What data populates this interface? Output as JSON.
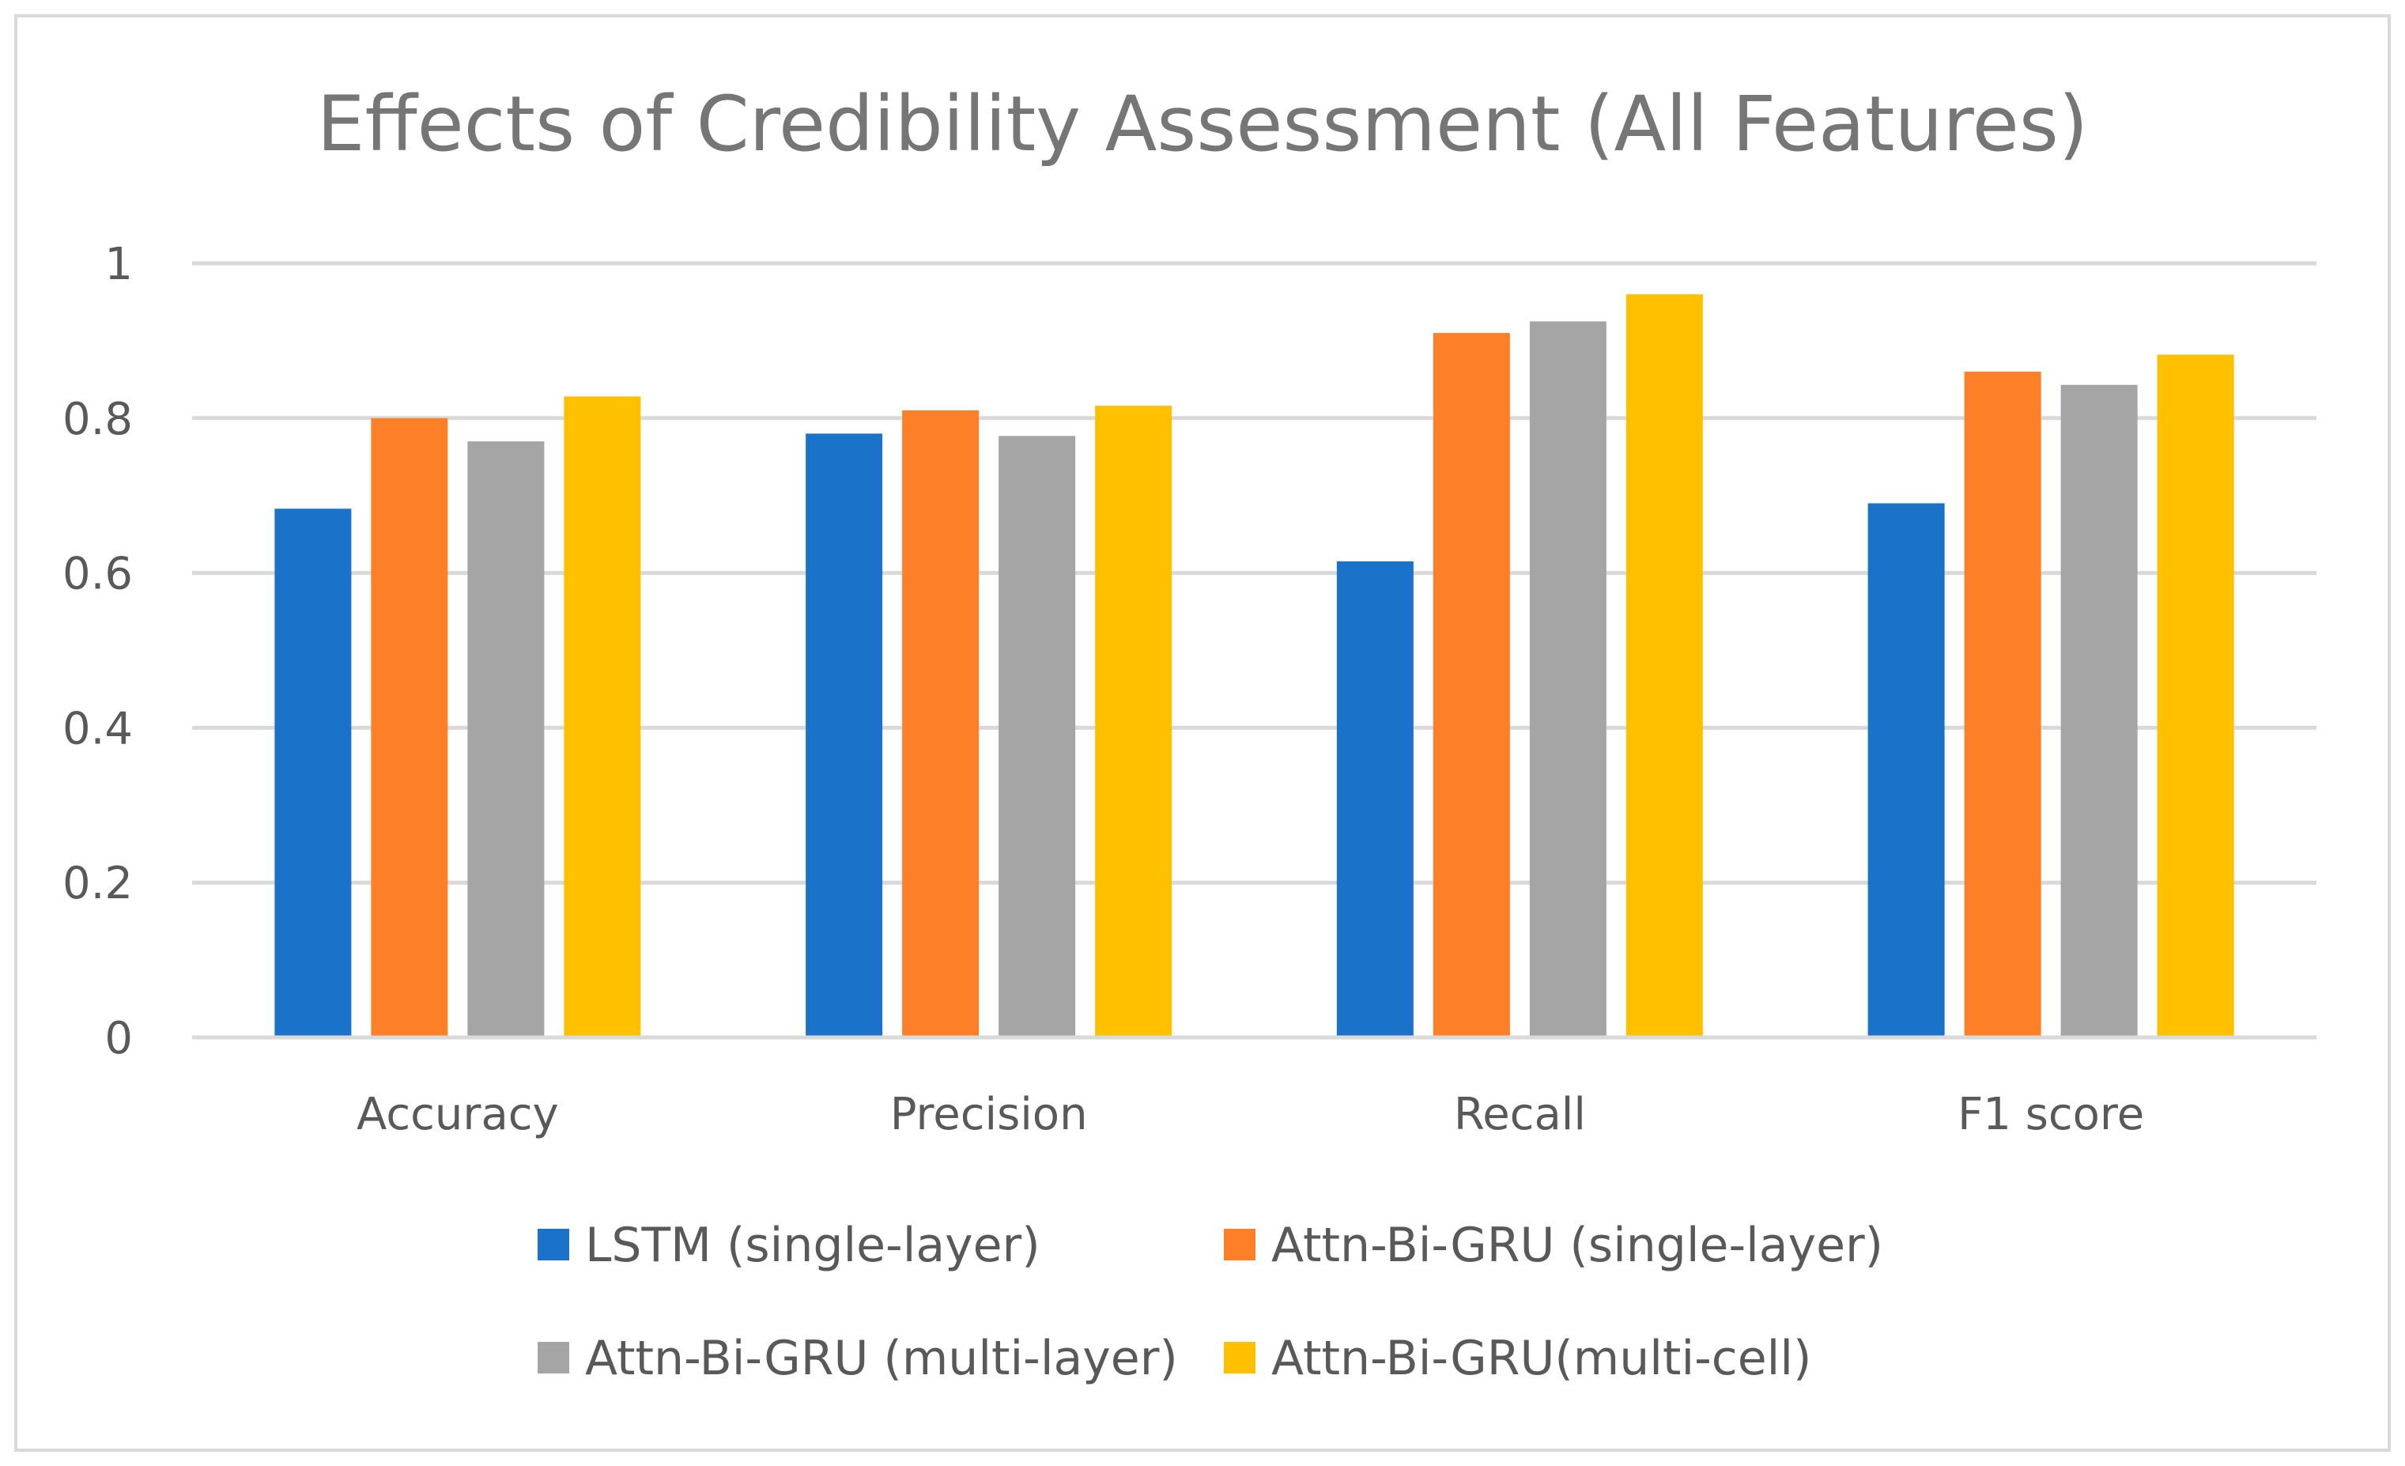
{
  "chart_data": {
    "type": "bar",
    "title": "Effects of Credibility Assessment (All Features)",
    "xlabel": "",
    "ylabel": "",
    "categories": [
      "Accuracy",
      "Precision",
      "Recall",
      "F1 score"
    ],
    "series": [
      {
        "name": "LSTM (single-layer)",
        "color": "#1a73c9",
        "values": [
          0.683,
          0.78,
          0.615,
          0.69
        ]
      },
      {
        "name": "Attn-Bi-GRU (single-layer)",
        "color": "#fd7f28",
        "values": [
          0.8,
          0.81,
          0.91,
          0.86
        ]
      },
      {
        "name": "Attn-Bi-GRU (multi-layer)",
        "color": "#a5a5a5",
        "values": [
          0.77,
          0.777,
          0.925,
          0.843
        ]
      },
      {
        "name": "Attn-Bi-GRU(multi-cell)",
        "color": "#ffc000",
        "values": [
          0.828,
          0.816,
          0.96,
          0.882
        ]
      }
    ],
    "ylim": [
      0,
      1
    ],
    "yticks": [
      0,
      0.2,
      0.4,
      0.6,
      0.8,
      1
    ],
    "ytick_labels": [
      "0",
      "0.2",
      "0.4",
      "0.6",
      "0.8",
      "1"
    ],
    "grid": true,
    "legend": "bottom",
    "gridline_color": "#d9d9d9"
  }
}
